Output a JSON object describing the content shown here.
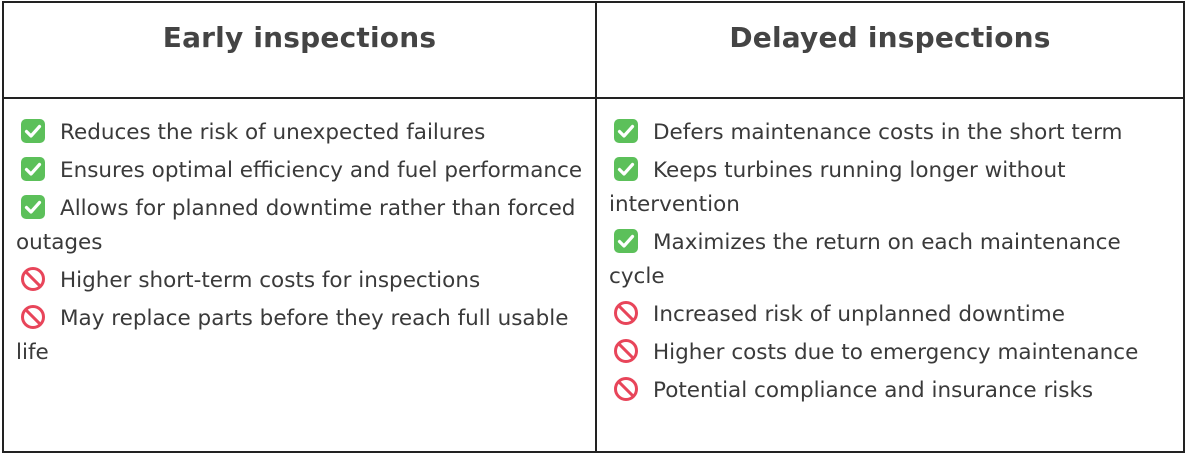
{
  "left": {
    "title": "Early inspections",
    "items": [
      {
        "icon": "check-mark-icon",
        "text": "Reduces the risk of unexpected failures"
      },
      {
        "icon": "check-mark-icon",
        "text": "Ensures optimal efficiency and fuel performance"
      },
      {
        "icon": "check-mark-icon",
        "text": "Allows for planned downtime rather than forced outages"
      },
      {
        "icon": "prohibited-icon",
        "text": "Higher short-term costs for inspections"
      },
      {
        "icon": "prohibited-icon",
        "text": "May replace parts before they reach full usable life"
      }
    ]
  },
  "right": {
    "title": "Delayed inspections",
    "items": [
      {
        "icon": "check-mark-icon",
        "text": "Defers maintenance costs in the short term"
      },
      {
        "icon": "check-mark-icon",
        "text": "Keeps turbines running longer without intervention"
      },
      {
        "icon": "check-mark-icon",
        "text": "Maximizes the return on each maintenance cycle"
      },
      {
        "icon": "prohibited-icon",
        "text": "Increased risk of unplanned downtime"
      },
      {
        "icon": "prohibited-icon",
        "text": "Higher costs due to emergency maintenance"
      },
      {
        "icon": "prohibited-icon",
        "text": "Potential compliance and insurance risks"
      }
    ]
  },
  "colors": {
    "check": "#5cc05a",
    "prohibited": "#e8455a",
    "border": "#222222",
    "heading": "#444444"
  }
}
